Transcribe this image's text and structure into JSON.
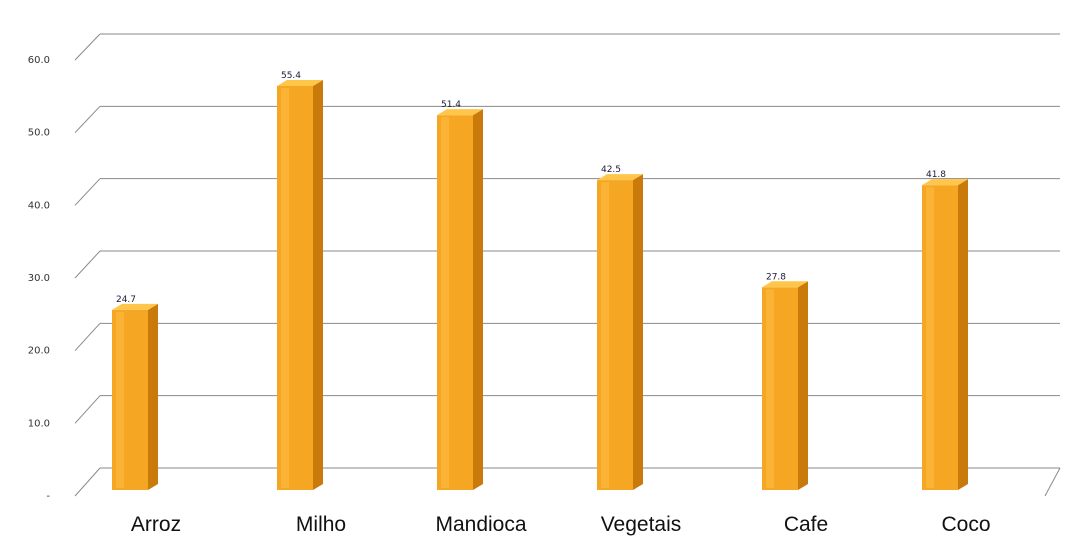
{
  "chart_data": {
    "type": "bar",
    "categories": [
      "Arroz",
      "Milho",
      "Mandioca",
      "Vegetais",
      "Cafe",
      "Coco"
    ],
    "values": [
      24.7,
      55.4,
      51.4,
      42.5,
      27.8,
      41.8
    ],
    "value_labels": [
      "24.7",
      "55.4",
      "51.4",
      "42.5",
      "27.8",
      "41.8"
    ],
    "y_ticks": [
      "-",
      "10.0",
      "20.0",
      "30.0",
      "40.0",
      "50.0",
      "60.0"
    ],
    "y_tick_values": [
      0,
      10,
      20,
      30,
      40,
      50,
      60
    ],
    "ylim": [
      0,
      60
    ],
    "grid": true,
    "legend": "none",
    "style": "3d-column",
    "colors": {
      "bar_front": "#F5A623",
      "bar_side": "#C97A0A",
      "bar_top": "#FFC64A",
      "grid": "#8a8a8a"
    }
  }
}
